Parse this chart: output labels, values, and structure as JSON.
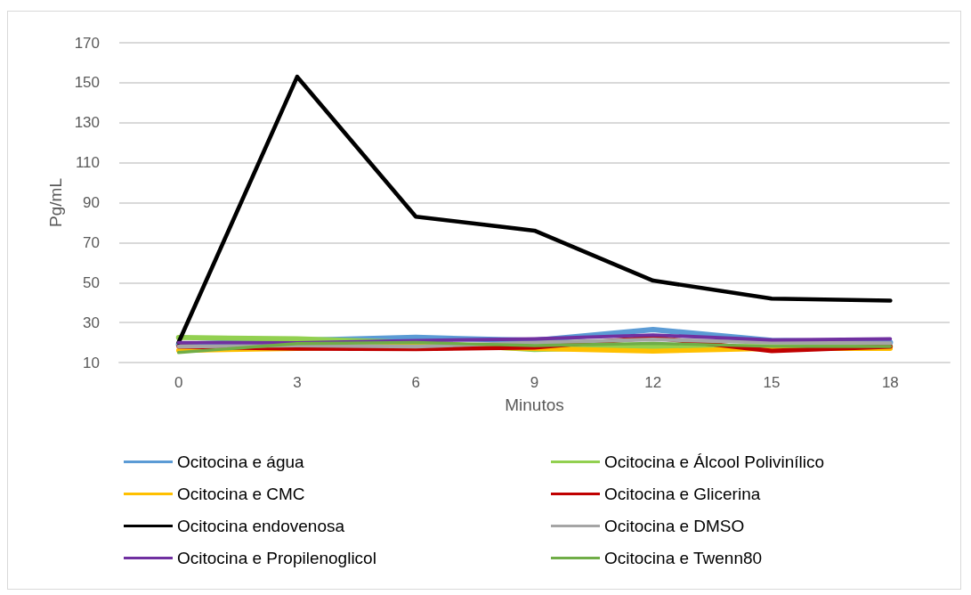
{
  "chart_data": {
    "type": "line",
    "xlabel": "Minutos",
    "ylabel": "Pg/mL",
    "categories": [
      "0",
      "3",
      "6",
      "9",
      "12",
      "15",
      "18"
    ],
    "ylim": [
      10,
      170
    ],
    "yticks": [
      10,
      30,
      50,
      70,
      90,
      110,
      130,
      150,
      170
    ],
    "grid": "y",
    "legend": "bottom",
    "marker": "none",
    "line_style": "solid",
    "series": [
      {
        "name": "Ocitocina e água",
        "color": "#5b9bd5",
        "values": [
          19,
          21,
          22.5,
          21,
          26.5,
          21,
          20
        ]
      },
      {
        "name": "Ocitocina e Álcool Polivinílico",
        "color": "#92d050",
        "values": [
          22.5,
          21.8,
          20,
          16.5,
          18,
          18,
          18
        ]
      },
      {
        "name": "Ocitocina e CMC",
        "color": "#ffc000",
        "values": [
          16,
          17,
          18.5,
          17,
          15.7,
          17,
          17
        ]
      },
      {
        "name": "Ocitocina e Glicerina",
        "color": "#c00000",
        "values": [
          18,
          17,
          16.8,
          17.6,
          22.6,
          15.8,
          18
        ]
      },
      {
        "name": "Ocitocina endovenosa",
        "color": "#000000",
        "values": [
          20,
          153,
          83,
          76,
          51,
          42,
          41
        ]
      },
      {
        "name": "Ocitocina e DMSO",
        "color": "#a5a5a5",
        "values": [
          18,
          18.5,
          18,
          20,
          21.5,
          20,
          19.6
        ]
      },
      {
        "name": "Ocitocina e Propilenoglicol",
        "color": "#7030a0",
        "values": [
          20,
          19.9,
          21,
          21.8,
          23.8,
          21.3,
          21.8
        ]
      },
      {
        "name": "Ocitocina e Twenn80",
        "color": "#70ad47",
        "values": [
          15,
          19.5,
          20,
          18.5,
          19.6,
          18.1,
          18
        ]
      }
    ]
  }
}
